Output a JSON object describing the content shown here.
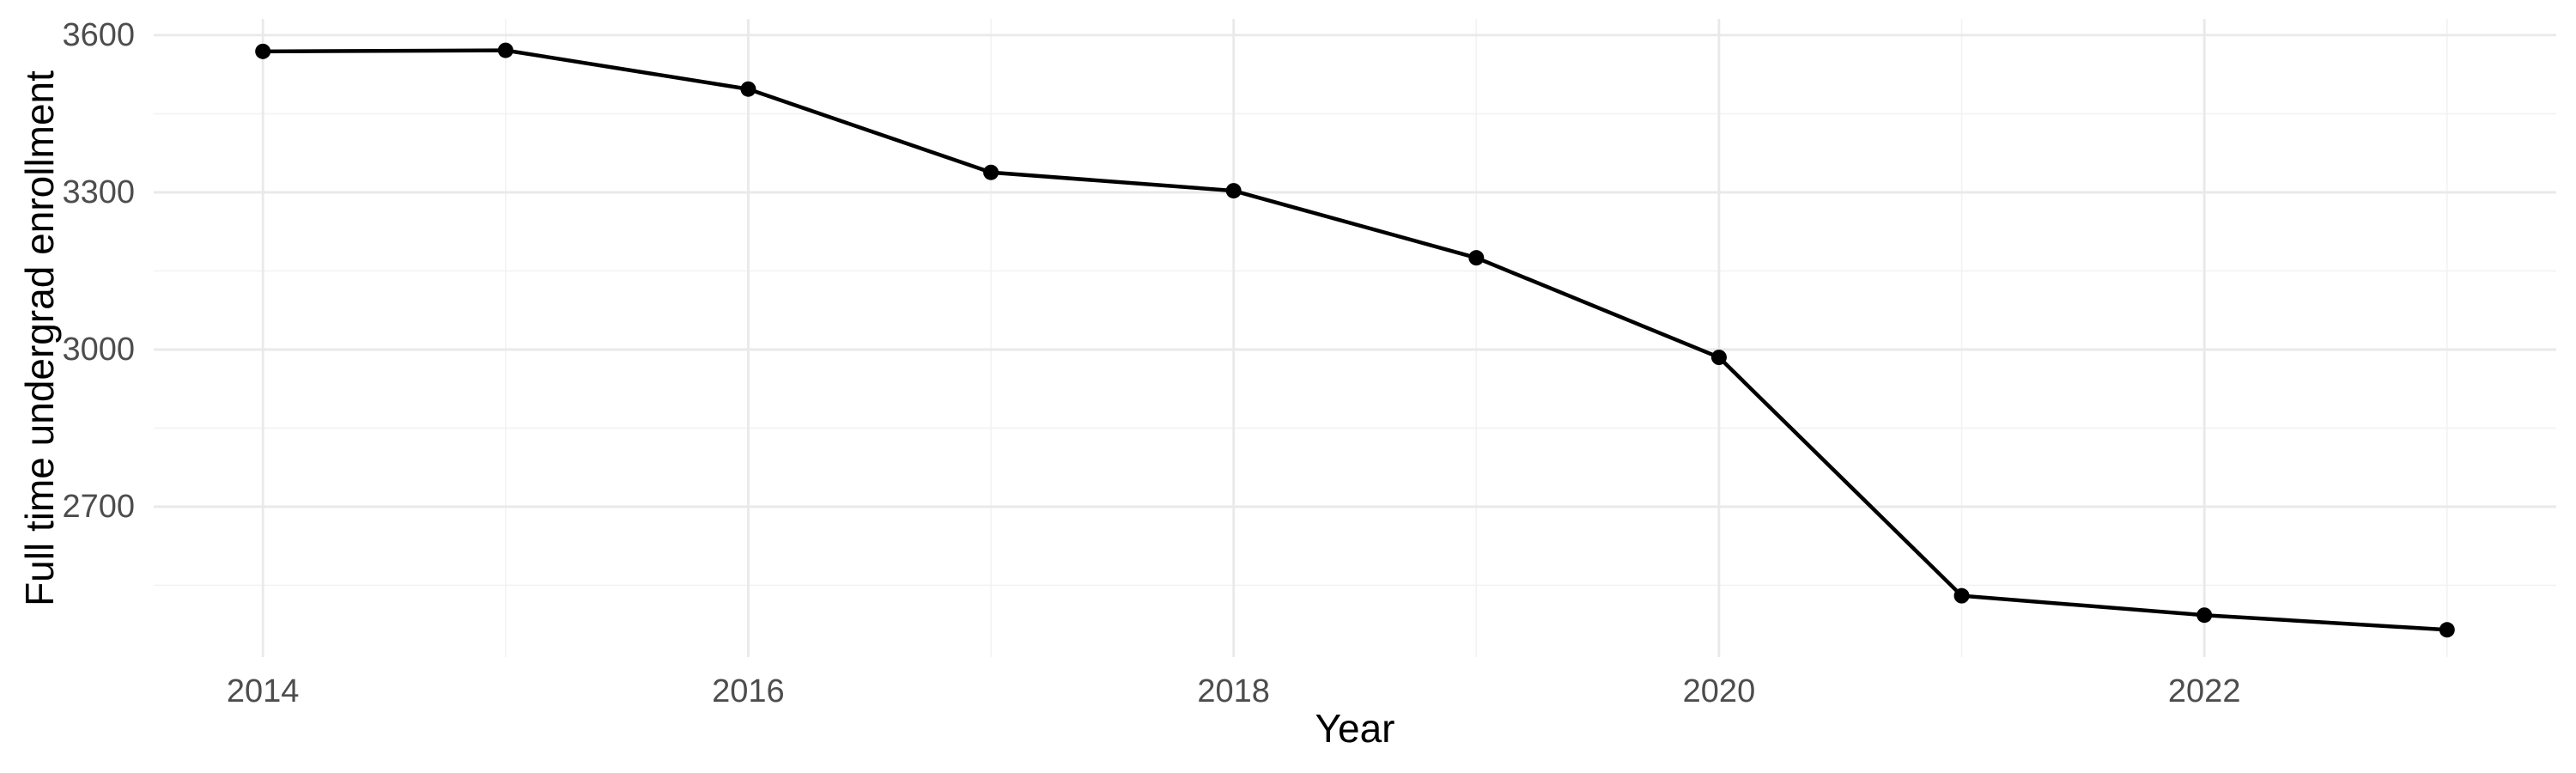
{
  "figure": {
    "background": "#FFFFFF"
  },
  "chart_data": {
    "type": "line",
    "title": "",
    "xlabel": "Year",
    "ylabel": "Full time undergrad enrollment",
    "x": [
      2014,
      2015,
      2016,
      2017,
      2018,
      2019,
      2020,
      2021,
      2022,
      2023
    ],
    "values": [
      3569,
      3571,
      3497,
      3338,
      3303,
      3175,
      2985,
      2530,
      2493,
      2465
    ],
    "series_name": "Full time undergrad enrollment",
    "x_ticks": [
      2014,
      2016,
      2018,
      2020,
      2022
    ],
    "x_tick_labels": [
      "2014",
      "2016",
      "2018",
      "2020",
      "2022"
    ],
    "x_minor_ticks": [
      2015,
      2017,
      2019,
      2021,
      2023
    ],
    "y_ticks": [
      3600,
      3300,
      3000,
      2700
    ],
    "y_tick_labels": [
      "3600",
      "3300",
      "3000",
      "2700"
    ],
    "y_minor_ticks": [
      3450,
      3150,
      2850,
      2550
    ],
    "xlim": [
      2013.55,
      2023.45
    ],
    "ylim": [
      2413,
      3631
    ],
    "grid": "major+minor",
    "legend": false,
    "marker": "filled-circle",
    "colors": {
      "line": "#000000",
      "point": "#000000",
      "grid_major": "#E9E9E9",
      "grid_minor": "#F2F2F2",
      "tick_text": "#4D4D4D",
      "axis_title": "#000000",
      "background": "#FFFFFF"
    }
  }
}
